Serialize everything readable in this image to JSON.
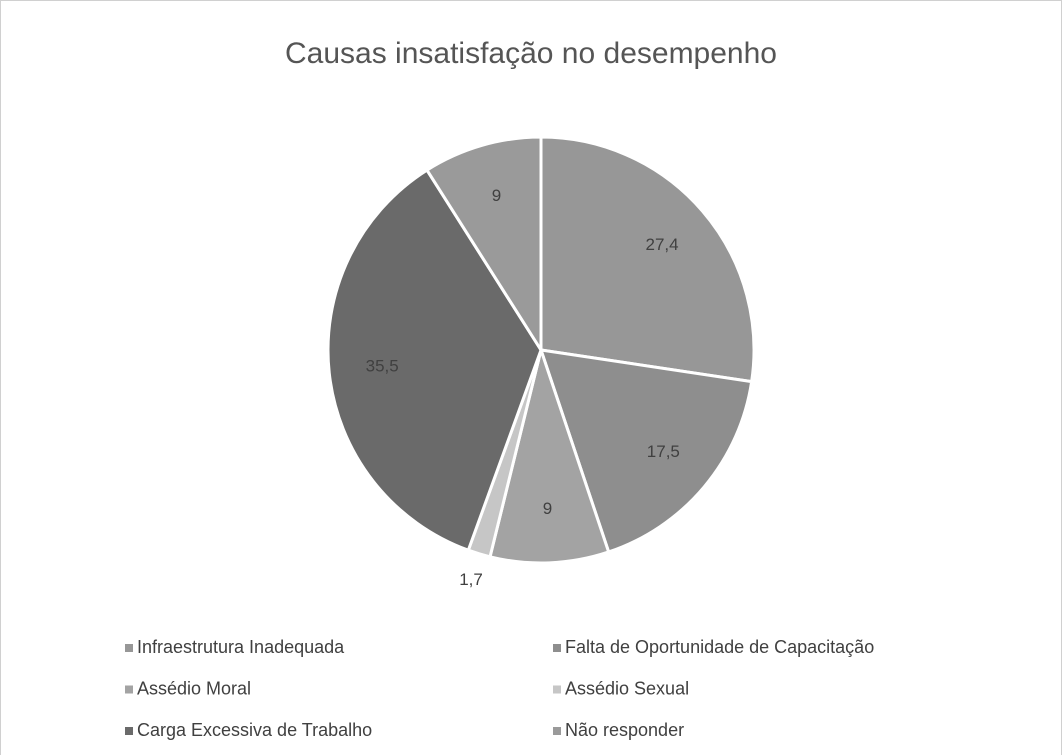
{
  "chart_data": {
    "type": "pie",
    "title": "Causas insatisfação no desempenho",
    "categories": [
      "Infraestrutura Inadequada",
      "Falta de Oportunidade de Capacitação",
      "Assédio Moral",
      "Assédio Sexual",
      "Carga Excessiva de Trabalho",
      "Não responder"
    ],
    "values": [
      27.4,
      17.5,
      9,
      1.7,
      35.5,
      9
    ],
    "value_labels": [
      "27,4",
      "17,5",
      "9",
      "1,7",
      "35,5",
      "9"
    ],
    "colors": [
      "#979797",
      "#8e8e8e",
      "#a3a3a3",
      "#c6c6c6",
      "#6a6a6a",
      "#9a9a9a"
    ]
  }
}
